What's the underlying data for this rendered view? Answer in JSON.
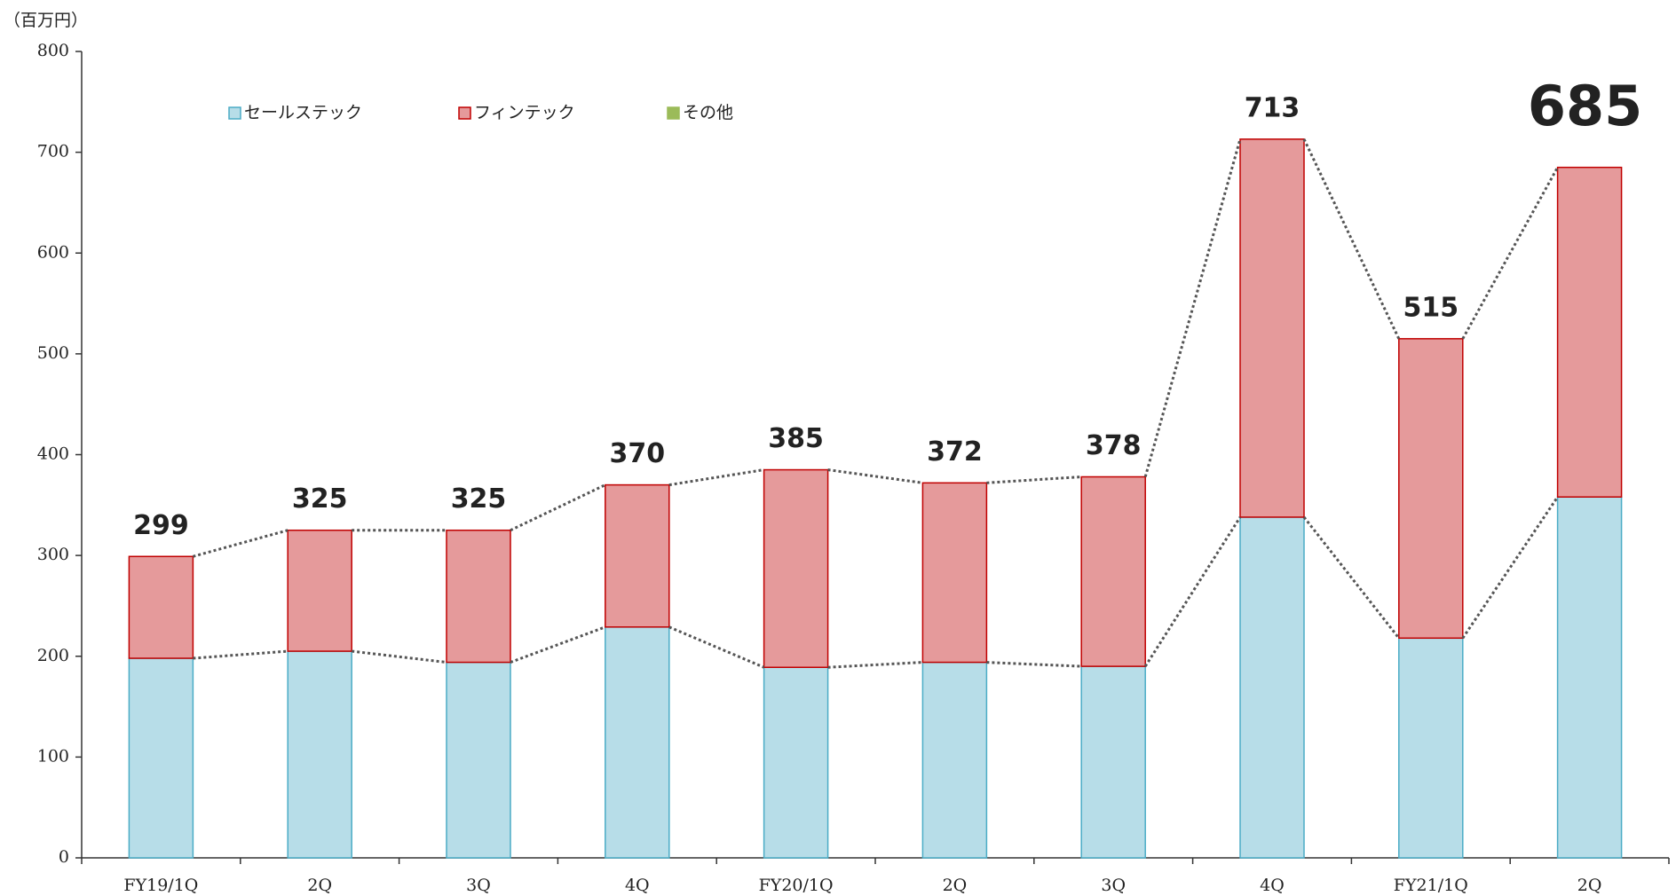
{
  "chart_data": {
    "type": "stacked_bar",
    "y_axis_label": "（百万円）",
    "categories": [
      "FY19/1Q",
      "2Q",
      "3Q",
      "4Q",
      "FY20/1Q",
      "2Q",
      "3Q",
      "4Q",
      "FY21/1Q",
      "2Q"
    ],
    "series": [
      {
        "name": "セールステック",
        "color": "#b7dde8",
        "stroke": "#4bacc6",
        "values": [
          198,
          205,
          194,
          229,
          189,
          194,
          190,
          338,
          218,
          358
        ]
      },
      {
        "name": "フィンテック",
        "color": "#e59a9b",
        "stroke": "#c00000",
        "values": [
          101,
          120,
          131,
          141,
          196,
          178,
          188,
          375,
          297,
          327
        ]
      },
      {
        "name": "その他",
        "color": "#9bbb59",
        "stroke": "#9bbb59",
        "values": [
          0,
          0,
          0,
          0,
          0,
          0,
          0,
          0,
          0,
          0
        ]
      }
    ],
    "totals": [
      299,
      325,
      325,
      370,
      385,
      372,
      378,
      713,
      515,
      685
    ],
    "ylim": [
      0,
      800
    ],
    "yticks": [
      0,
      100,
      200,
      300,
      400,
      500,
      600,
      700,
      800
    ],
    "legend": "top-left",
    "grid": false
  }
}
